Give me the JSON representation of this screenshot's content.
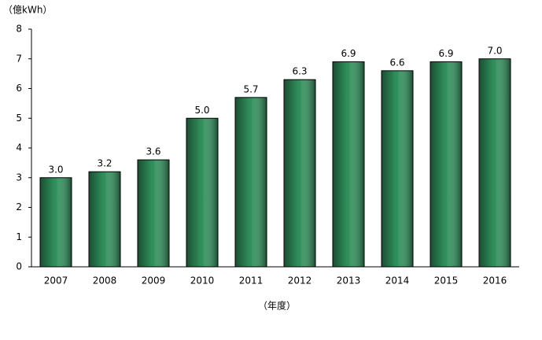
{
  "chart_data": {
    "type": "bar",
    "y_axis_label": "（億kWh）",
    "x_axis_label": "（年度）",
    "categories": [
      "2007",
      "2008",
      "2009",
      "2010",
      "2011",
      "2012",
      "2013",
      "2014",
      "2015",
      "2016"
    ],
    "values": [
      3.0,
      3.2,
      3.6,
      5.0,
      5.7,
      6.3,
      6.9,
      6.6,
      6.9,
      7.0
    ],
    "value_labels": [
      "3.0",
      "3.2",
      "3.6",
      "5.0",
      "5.7",
      "6.3",
      "6.9",
      "6.6",
      "6.9",
      "7.0"
    ],
    "color": "#2f8f5b",
    "ylim": [
      0,
      8
    ],
    "yticks": [
      0,
      1,
      2,
      3,
      4,
      5,
      6,
      7,
      8
    ],
    "grid": false
  }
}
